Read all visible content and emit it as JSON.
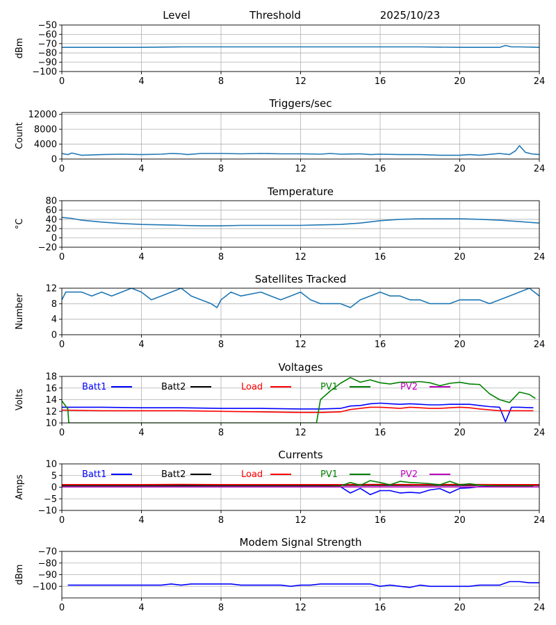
{
  "header": {
    "left": "Level",
    "middle": "Threshold",
    "date": "2025/10/23"
  },
  "colors": {
    "series_default": "#1f77b4",
    "batt1": "#0000ff",
    "batt2": "#000000",
    "load": "#ff0000",
    "pv1": "#008000",
    "pv2": "#bf00bf",
    "grid": "#b0b0b0"
  },
  "chart_data": [
    {
      "id": "level",
      "type": "line",
      "title": "",
      "xlabel": "",
      "ylabel": "dBm",
      "xlim": [
        0,
        24
      ],
      "ylim": [
        -100,
        -50
      ],
      "x_ticks": [
        0,
        4,
        8,
        12,
        16,
        20,
        24
      ],
      "y_ticks": [
        -100,
        -90,
        -80,
        -70,
        -60,
        -50
      ],
      "grid": true,
      "legend": "none",
      "series": [
        {
          "color": "#1f77b4",
          "x": [
            0,
            2,
            4,
            6,
            8,
            10,
            12,
            14,
            16,
            18,
            20,
            22,
            22.3,
            22.6,
            23,
            24
          ],
          "y": [
            -74,
            -74,
            -74,
            -73.5,
            -73.5,
            -73.5,
            -73.5,
            -73.5,
            -73.5,
            -73.5,
            -74,
            -74,
            -72,
            -73.5,
            -73.5,
            -74
          ]
        }
      ]
    },
    {
      "id": "triggers",
      "type": "line",
      "title": "Triggers/sec",
      "xlabel": "",
      "ylabel": "Count",
      "xlim": [
        0,
        24
      ],
      "ylim": [
        0,
        12500
      ],
      "x_ticks": [
        0,
        4,
        8,
        12,
        16,
        20,
        24
      ],
      "y_ticks": [
        0,
        4000,
        8000,
        12000
      ],
      "grid": true,
      "legend": "none",
      "series": [
        {
          "color": "#1f77b4",
          "x": [
            0,
            0.3,
            0.5,
            1,
            2,
            3,
            4,
            5,
            5.5,
            6,
            6.3,
            7,
            8,
            9,
            10,
            11,
            12,
            13,
            13.5,
            14,
            15,
            15.5,
            16,
            17,
            18,
            19,
            20,
            20.5,
            21,
            22,
            22.5,
            22.8,
            23,
            23.3,
            23.6,
            24
          ],
          "y": [
            1500,
            1200,
            1600,
            1000,
            1200,
            1300,
            1200,
            1300,
            1500,
            1400,
            1200,
            1500,
            1500,
            1400,
            1500,
            1400,
            1400,
            1300,
            1500,
            1300,
            1400,
            1200,
            1300,
            1200,
            1200,
            1000,
            1000,
            1200,
            1000,
            1500,
            1200,
            2200,
            3600,
            1800,
            1400,
            1200
          ]
        }
      ]
    },
    {
      "id": "temperature",
      "type": "line",
      "title": "Temperature",
      "xlabel": "",
      "ylabel": "°C",
      "xlim": [
        0,
        24
      ],
      "ylim": [
        -20,
        80
      ],
      "x_ticks": [
        0,
        4,
        8,
        12,
        16,
        20,
        24
      ],
      "y_ticks": [
        -20,
        0,
        20,
        40,
        60,
        80
      ],
      "grid": true,
      "legend": "none",
      "series": [
        {
          "color": "#1f77b4",
          "x": [
            0,
            0.5,
            1,
            2,
            3,
            4,
            5,
            6,
            7,
            8,
            9,
            10,
            11,
            12,
            13,
            14,
            15,
            16,
            17,
            18,
            19,
            20,
            21,
            22,
            23,
            24
          ],
          "y": [
            44,
            42,
            38,
            34,
            31,
            29,
            28,
            27,
            26,
            26,
            27,
            27,
            27,
            27,
            28,
            29,
            32,
            37,
            40,
            41,
            41,
            41,
            40,
            38,
            35,
            32
          ]
        }
      ]
    },
    {
      "id": "satellites",
      "type": "line",
      "title": "Satellites Tracked",
      "xlabel": "",
      "ylabel": "Number",
      "xlim": [
        0,
        24
      ],
      "ylim": [
        0,
        12
      ],
      "x_ticks": [
        0,
        4,
        8,
        12,
        16,
        20,
        24
      ],
      "y_ticks": [
        0,
        4,
        8,
        12
      ],
      "grid": true,
      "legend": "none",
      "series": [
        {
          "color": "#1f77b4",
          "x": [
            0,
            0.2,
            1,
            1.5,
            2,
            2.5,
            3,
            3.5,
            4,
            4.5,
            5,
            5.5,
            6,
            6.5,
            7,
            7.5,
            7.8,
            8,
            8.5,
            9,
            10,
            10.5,
            11,
            11.5,
            12,
            12.5,
            13,
            13.5,
            14,
            14.5,
            15,
            15.5,
            16,
            16.5,
            17,
            17.5,
            18,
            18.5,
            19,
            19.5,
            20,
            20.5,
            21,
            21.5,
            22,
            22.5,
            23,
            23.5,
            24
          ],
          "y": [
            9,
            11,
            11,
            10,
            11,
            10,
            11,
            12,
            11,
            9,
            10,
            11,
            12,
            10,
            9,
            8,
            7,
            9,
            11,
            10,
            11,
            10,
            9,
            10,
            11,
            9,
            8,
            8,
            8,
            7,
            9,
            10,
            11,
            10,
            10,
            9,
            9,
            8,
            8,
            8,
            9,
            9,
            9,
            8,
            9,
            10,
            11,
            12,
            10
          ]
        }
      ]
    },
    {
      "id": "voltages",
      "type": "line",
      "title": "Voltages",
      "xlabel": "",
      "ylabel": "Volts",
      "xlim": [
        0,
        24
      ],
      "ylim": [
        10,
        18
      ],
      "x_ticks": [
        0,
        4,
        8,
        12,
        16,
        20,
        24
      ],
      "y_ticks": [
        10,
        12,
        14,
        16,
        18
      ],
      "grid": true,
      "legend": "top",
      "series": [
        {
          "name": "Batt1",
          "color": "#0000ff",
          "x": [
            0,
            2,
            4,
            6,
            8,
            10,
            12,
            13,
            14,
            14.5,
            15,
            15.5,
            16,
            16.5,
            17,
            17.5,
            18,
            18.5,
            19,
            19.5,
            20,
            20.5,
            21,
            21.5,
            22,
            22.3,
            22.6,
            23,
            23.7
          ],
          "y": [
            12.7,
            12.7,
            12.6,
            12.6,
            12.5,
            12.5,
            12.4,
            12.4,
            12.5,
            12.9,
            13,
            13.3,
            13.4,
            13.3,
            13.2,
            13.3,
            13.2,
            13.1,
            13.1,
            13.2,
            13.2,
            13.2,
            13,
            12.8,
            12.7,
            10.2,
            12.7,
            12.7,
            12.6
          ]
        },
        {
          "name": "Batt2",
          "color": "#000000",
          "x": [],
          "y": []
        },
        {
          "name": "Load",
          "color": "#ff0000",
          "x": [
            0,
            2,
            4,
            6,
            8,
            10,
            12,
            13,
            14,
            14.5,
            15,
            15.5,
            16,
            16.5,
            17,
            17.5,
            18,
            18.5,
            19,
            19.5,
            20,
            20.5,
            21,
            22,
            23,
            23.7
          ],
          "y": [
            12.2,
            12.1,
            12.1,
            12.1,
            12,
            11.9,
            11.8,
            11.8,
            11.9,
            12.3,
            12.5,
            12.7,
            12.7,
            12.6,
            12.5,
            12.7,
            12.6,
            12.5,
            12.5,
            12.6,
            12.7,
            12.6,
            12.4,
            12.1,
            12.1,
            12.1
          ],
          "dense": true
        },
        {
          "name": "PV1",
          "color": "#008000",
          "x": [
            0,
            0.3,
            0.35,
            12.8,
            13,
            13.5,
            14,
            14.5,
            15,
            15.5,
            16,
            16.5,
            17,
            17.5,
            18,
            18.5,
            19,
            19.5,
            20,
            20.5,
            21,
            21.5,
            22,
            22.5,
            23,
            23.5,
            23.8
          ],
          "y": [
            13.8,
            12.4,
            10,
            10,
            14,
            15.5,
            16.8,
            17.8,
            17,
            17.4,
            16.9,
            16.7,
            17,
            17,
            17.1,
            16.9,
            16.4,
            16.8,
            17,
            16.7,
            16.6,
            15,
            14,
            13.5,
            15.3,
            14.9,
            14.2
          ]
        },
        {
          "name": "PV2",
          "color": "#bf00bf",
          "x": [],
          "y": []
        }
      ]
    },
    {
      "id": "currents",
      "type": "line",
      "title": "Currents",
      "xlabel": "",
      "ylabel": "Amps",
      "xlim": [
        0,
        24
      ],
      "ylim": [
        -10,
        10
      ],
      "x_ticks": [
        0,
        4,
        8,
        12,
        16,
        20,
        24
      ],
      "y_ticks": [
        -10,
        -5,
        0,
        5,
        10
      ],
      "grid": true,
      "legend": "top",
      "series": [
        {
          "name": "Batt1",
          "color": "#0000ff",
          "x": [
            0,
            2,
            4,
            6,
            8,
            10,
            12,
            13,
            14,
            14.5,
            15,
            15.5,
            16,
            16.5,
            17,
            17.5,
            18,
            18.5,
            19,
            19.5,
            20,
            20.5,
            21,
            22,
            23,
            23.7
          ],
          "y": [
            0.3,
            0.3,
            0.3,
            0.3,
            0.3,
            0.3,
            0.3,
            0.3,
            0.2,
            -2.5,
            -0.5,
            -3.2,
            -1.5,
            -1.5,
            -2.5,
            -2.2,
            -2.5,
            -1.2,
            -0.6,
            -2.5,
            -0.5,
            -0.3,
            0.2,
            0.3,
            0.3,
            0.3
          ]
        },
        {
          "name": "Batt2",
          "color": "#000000",
          "x": [
            0,
            24
          ],
          "y": [
            0.8,
            0.8
          ]
        },
        {
          "name": "Load",
          "color": "#ff0000",
          "x": [
            0,
            2,
            4,
            6,
            8,
            10,
            12,
            14,
            16,
            18,
            20,
            22,
            24
          ],
          "y": [
            1.1,
            1.1,
            1.1,
            1.2,
            1.1,
            1.1,
            1.1,
            1.1,
            1.2,
            1.1,
            1.2,
            1.1,
            1.1
          ]
        },
        {
          "name": "PV1",
          "color": "#008000",
          "x": [
            0,
            2,
            4,
            6,
            8,
            10,
            12,
            13,
            14,
            14.5,
            15,
            15.5,
            16,
            16.5,
            17,
            17.5,
            18,
            18.5,
            19,
            19.5,
            20,
            20.5,
            21,
            22,
            23,
            23.7
          ],
          "y": [
            0.3,
            0.3,
            0.3,
            0.3,
            0.3,
            0.3,
            0.3,
            0.3,
            0.5,
            2,
            0.8,
            2.8,
            2,
            1,
            2.5,
            2,
            1.8,
            1.5,
            1,
            2.5,
            1,
            1.5,
            0.8,
            0.5,
            0.5,
            0.5
          ]
        },
        {
          "name": "PV2",
          "color": "#bf00bf",
          "x": [
            0,
            24
          ],
          "y": [
            0.1,
            0.1
          ]
        }
      ]
    },
    {
      "id": "modem",
      "type": "line",
      "title": "Modem Signal Strength",
      "xlabel": "",
      "ylabel": "dBm",
      "xlim": [
        0,
        24
      ],
      "ylim": [
        -110,
        -70
      ],
      "x_ticks": [
        0,
        4,
        8,
        12,
        16,
        20,
        24
      ],
      "y_ticks": [
        -100,
        -90,
        -80,
        -70
      ],
      "grid": true,
      "legend": "none",
      "series": [
        {
          "color": "#0000ff",
          "x": [
            0.3,
            1,
            2,
            3,
            4,
            5,
            5.5,
            6,
            6.5,
            7,
            8,
            8.5,
            9,
            10,
            10.5,
            11,
            11.5,
            12,
            12.5,
            13,
            14,
            15,
            15.5,
            16,
            16.5,
            17,
            17.5,
            18,
            18.5,
            19,
            20,
            20.5,
            21,
            22,
            22.5,
            23,
            23.5,
            24
          ],
          "y": [
            -99,
            -99,
            -99,
            -99,
            -99,
            -99,
            -98,
            -99,
            -98,
            -98,
            -98,
            -98,
            -99,
            -99,
            -99,
            -99,
            -100,
            -99,
            -99,
            -98,
            -98,
            -98,
            -98,
            -100,
            -99,
            -100,
            -101,
            -99,
            -100,
            -100,
            -100,
            -100,
            -99,
            -99,
            -96,
            -96,
            -97,
            -97
          ]
        }
      ]
    }
  ]
}
